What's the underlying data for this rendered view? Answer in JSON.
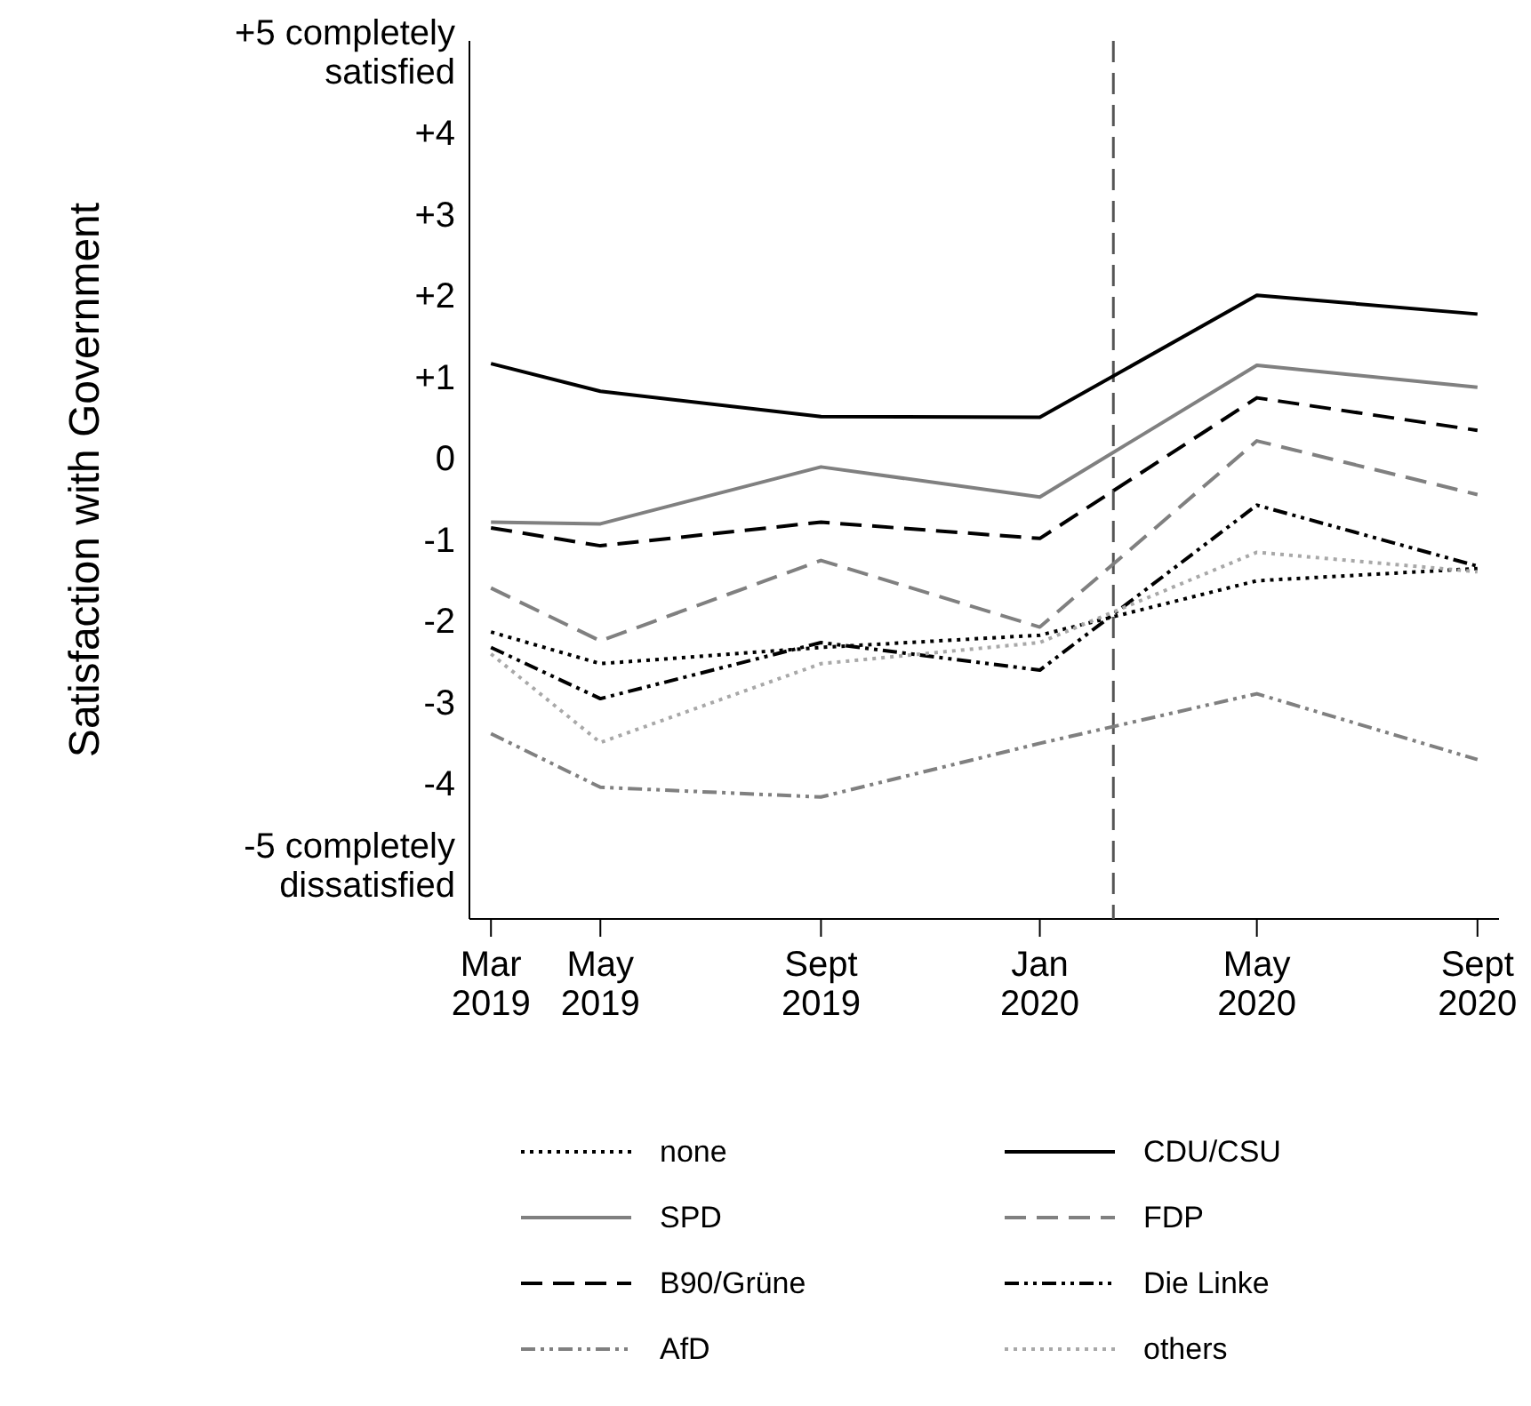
{
  "chart_data": {
    "type": "line",
    "ylabel": "Satisfaction with Government",
    "x": [
      "2019-03",
      "2019-05",
      "2019-09",
      "2020-01",
      "2020-05",
      "2020-09"
    ],
    "xlim": [
      "2019-02-17",
      "2020-09-13"
    ],
    "xticks": [
      {
        "value": "2019-03",
        "label": "Mar 2019"
      },
      {
        "value": "2019-05",
        "label": "May 2019"
      },
      {
        "value": "2019-09",
        "label": "Sept 2019"
      },
      {
        "value": "2020-01",
        "label": "Jan 2020"
      },
      {
        "value": "2020-05",
        "label": "May 2020"
      },
      {
        "value": "2020-09",
        "label": "Sept 2020"
      }
    ],
    "ylim": [
      -5.65,
      5.15
    ],
    "yticks": [
      {
        "value": 5,
        "label": "+5 completely satisfied"
      },
      {
        "value": 4,
        "label": "+4"
      },
      {
        "value": 3,
        "label": "+3"
      },
      {
        "value": 2,
        "label": "+2"
      },
      {
        "value": 1,
        "label": "+1"
      },
      0,
      -1,
      -2,
      -3,
      -4,
      {
        "value": -5,
        "label": "-5 completely dissatisfied"
      }
    ],
    "ref_lines": [
      {
        "axis": "x",
        "value": "2020-02-11",
        "color": "#555555",
        "line_style": "dashed"
      }
    ],
    "legend": "bottom",
    "grid": false,
    "marker": "none",
    "series": [
      {
        "name": "none",
        "color": "#000000",
        "line_style": "dotted",
        "values": [
          -2.12,
          -2.51,
          -2.31,
          -2.16,
          -1.49,
          -1.34
        ]
      },
      {
        "name": "CDU/CSU",
        "color": "#000000",
        "line_style": "solid",
        "values": [
          1.18,
          0.84,
          0.53,
          0.52,
          2.02,
          1.79
        ]
      },
      {
        "name": "SPD",
        "color": "#808080",
        "line_style": "solid",
        "values": [
          -0.77,
          -0.79,
          -0.09,
          -0.46,
          1.16,
          0.89
        ]
      },
      {
        "name": "FDP",
        "color": "#808080",
        "line_style": "dashed",
        "values": [
          -1.58,
          -2.23,
          -1.24,
          -2.06,
          0.23,
          -0.43
        ]
      },
      {
        "name": "B90/Grüne",
        "color": "#000000",
        "line_style": "dashed",
        "values": [
          -0.84,
          -1.06,
          -0.77,
          -0.97,
          0.76,
          0.36
        ]
      },
      {
        "name": "Die Linke",
        "color": "#000000",
        "line_style": "dashdot",
        "values": [
          -2.31,
          -2.94,
          -2.25,
          -2.59,
          -0.56,
          -1.31
        ]
      },
      {
        "name": "AfD",
        "color": "#808080",
        "line_style": "dashdot",
        "values": [
          -3.37,
          -4.03,
          -4.15,
          -3.49,
          -2.88,
          -3.69
        ]
      },
      {
        "name": "others",
        "color": "#a8a8a8",
        "line_style": "dotted",
        "values": [
          -2.39,
          -3.48,
          -2.51,
          -2.25,
          -1.14,
          -1.38
        ]
      }
    ]
  }
}
